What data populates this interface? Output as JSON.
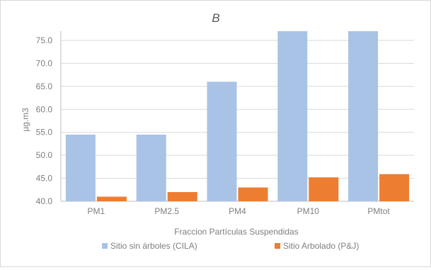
{
  "chart_data": {
    "type": "bar",
    "title": "B",
    "xlabel": "Fraccion Partículas Suspendidas",
    "ylabel": "µg.m3",
    "categories": [
      "PM1",
      "PM2.5",
      "PM4",
      "PM10",
      "PMtot"
    ],
    "ylim": [
      40,
      77
    ],
    "yticks": [
      "40.0",
      "45.0",
      "50.0",
      "55.0",
      "60.0",
      "65.0",
      "70.0",
      "75.0"
    ],
    "grid": true,
    "legend_position": "bottom",
    "series": [
      {
        "name": "Sitio sin árboles (CILA)",
        "color": "#a9c3e6",
        "values": [
          54.5,
          54.5,
          66.0,
          77.0,
          77.0
        ]
      },
      {
        "name": "Sitio Arbolado (P&J)",
        "color": "#ed7d31",
        "values": [
          41.0,
          42.0,
          43.0,
          45.2,
          45.9
        ]
      }
    ]
  }
}
